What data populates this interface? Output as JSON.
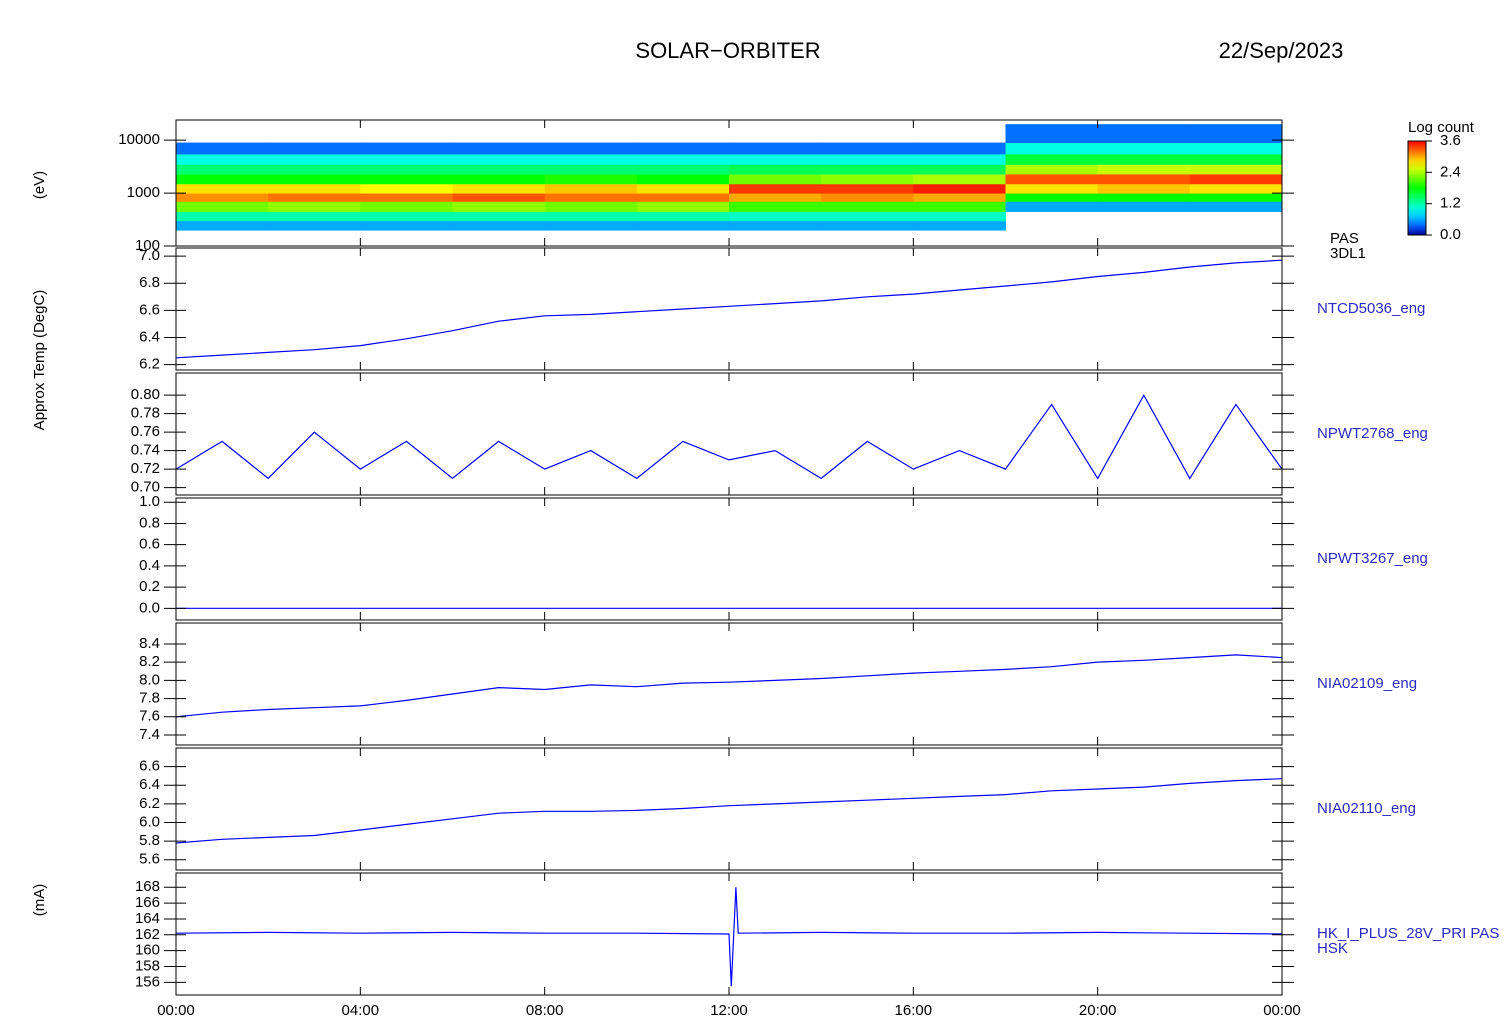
{
  "header": {
    "title": "SOLAR−ORBITER",
    "date": "22/Sep/2023"
  },
  "chart_data": [
    {
      "type": "heatmap",
      "ylabel": "(eV)",
      "log": true,
      "ylim": [
        100,
        24000
      ],
      "yticks": [
        100,
        1000,
        10000
      ],
      "xlim": [
        0,
        24
      ],
      "x_bins": [
        0,
        2,
        4,
        6,
        8,
        10,
        12,
        14,
        16,
        18,
        20,
        22,
        24
      ],
      "y_bins": [
        200,
        300,
        450,
        700,
        1000,
        1500,
        2300,
        3500,
        5500,
        9000,
        20000
      ],
      "z": [
        [
          0.6,
          1.2,
          2.2,
          3.1,
          2.8,
          1.8,
          1.4,
          1.0,
          0.4,
          null
        ],
        [
          0.6,
          1.2,
          2.3,
          3.2,
          2.8,
          1.8,
          1.4,
          1.0,
          0.4,
          null
        ],
        [
          0.6,
          1.2,
          2.2,
          3.2,
          2.7,
          1.8,
          1.4,
          1.0,
          0.4,
          null
        ],
        [
          0.6,
          1.2,
          2.3,
          3.3,
          2.8,
          1.8,
          1.4,
          1.0,
          0.4,
          null
        ],
        [
          0.6,
          1.2,
          2.2,
          3.2,
          2.9,
          1.9,
          1.4,
          1.0,
          0.4,
          null
        ],
        [
          0.6,
          1.2,
          2.3,
          3.2,
          2.8,
          1.8,
          1.4,
          1.0,
          0.4,
          null
        ],
        [
          0.6,
          1.1,
          2.0,
          3.0,
          3.4,
          2.2,
          1.5,
          1.0,
          0.4,
          null
        ],
        [
          0.6,
          1.1,
          2.0,
          3.1,
          3.4,
          2.3,
          1.5,
          1.0,
          0.4,
          null
        ],
        [
          0.6,
          1.1,
          2.0,
          3.0,
          3.5,
          2.4,
          1.5,
          1.0,
          0.4,
          null
        ],
        [
          null,
          null,
          0.6,
          1.8,
          2.8,
          3.3,
          2.4,
          1.6,
          1.0,
          0.4
        ],
        [
          null,
          null,
          0.6,
          1.8,
          2.9,
          3.3,
          2.5,
          1.6,
          1.0,
          0.4
        ],
        [
          null,
          null,
          0.6,
          1.8,
          2.8,
          3.4,
          2.5,
          1.6,
          1.0,
          0.4
        ]
      ],
      "clim": [
        0,
        3.6
      ],
      "colorbar_title": "Log count",
      "colorbar_ticks": [
        {
          "value": 0,
          "label": "0.0"
        },
        {
          "value": 1.2,
          "label": "1.2"
        },
        {
          "value": 2.4,
          "label": "2.4"
        },
        {
          "value": 3.6,
          "label": "3.6"
        }
      ],
      "right_labels": [
        "PAS",
        "3DL1"
      ]
    },
    {
      "type": "line",
      "ylabel": "Approx Temp (DegC)",
      "color": "#0000ff",
      "ylim": [
        6.16,
        7.06
      ],
      "yticks": [
        {
          "value": 6.2,
          "label": "6.2"
        },
        {
          "value": 6.4,
          "label": "6.4"
        },
        {
          "value": 6.6,
          "label": "6.6"
        },
        {
          "value": 6.8,
          "label": "6.8"
        },
        {
          "value": 7,
          "label": "7.0"
        }
      ],
      "x": [
        0,
        1,
        2,
        3,
        4,
        5,
        6,
        7,
        8,
        9,
        10,
        11,
        12,
        13,
        14,
        15,
        16,
        17,
        18,
        19,
        20,
        21,
        22,
        23,
        24
      ],
      "values": [
        6.25,
        6.27,
        6.29,
        6.31,
        6.34,
        6.39,
        6.45,
        6.52,
        6.56,
        6.57,
        6.59,
        6.61,
        6.63,
        6.65,
        6.67,
        6.7,
        6.72,
        6.75,
        6.78,
        6.81,
        6.85,
        6.88,
        6.92,
        6.95,
        6.97
      ],
      "right_labels": [
        "NTCD5036_eng"
      ]
    },
    {
      "type": "line",
      "color": "#0000ff",
      "ylim": [
        0.692,
        0.824
      ],
      "yticks": [
        {
          "value": 0.7,
          "label": "0.70"
        },
        {
          "value": 0.72,
          "label": "0.72"
        },
        {
          "value": 0.74,
          "label": "0.74"
        },
        {
          "value": 0.76,
          "label": "0.76"
        },
        {
          "value": 0.78,
          "label": "0.78"
        },
        {
          "value": 0.8,
          "label": "0.80"
        }
      ],
      "x": [
        0,
        1,
        2,
        3,
        4,
        5,
        6,
        7,
        8,
        9,
        10,
        11,
        12,
        13,
        14,
        15,
        16,
        17,
        18,
        19,
        20,
        21,
        22,
        23,
        24
      ],
      "values": [
        0.72,
        0.75,
        0.71,
        0.76,
        0.72,
        0.75,
        0.71,
        0.75,
        0.72,
        0.74,
        0.71,
        0.75,
        0.73,
        0.74,
        0.71,
        0.75,
        0.72,
        0.74,
        0.72,
        0.79,
        0.71,
        0.8,
        0.71,
        0.79,
        0.72
      ],
      "right_labels": [
        "NPWT2768_eng"
      ]
    },
    {
      "type": "line",
      "color": "#0000ff",
      "ylim": [
        -0.11,
        1.04
      ],
      "yticks": [
        {
          "value": 0,
          "label": "0.0"
        },
        {
          "value": 0.2,
          "label": "0.2"
        },
        {
          "value": 0.4,
          "label": "0.4"
        },
        {
          "value": 0.6,
          "label": "0.6"
        },
        {
          "value": 0.8,
          "label": "0.8"
        },
        {
          "value": 1,
          "label": "1.0"
        }
      ],
      "x": [
        0,
        1,
        2,
        3,
        4,
        5,
        6,
        7,
        8,
        9,
        10,
        11,
        12,
        13,
        14,
        15,
        16,
        17,
        18,
        19,
        20,
        21,
        22,
        23,
        24
      ],
      "values": [
        0,
        0,
        0,
        0,
        0,
        0,
        0,
        0,
        0,
        0,
        0,
        0,
        0,
        0,
        0,
        0,
        0,
        0,
        0,
        0,
        0,
        0,
        0,
        0,
        0
      ],
      "right_labels": [
        "NPWT3267_eng"
      ]
    },
    {
      "type": "line",
      "color": "#0000ff",
      "ylim": [
        7.29,
        8.63
      ],
      "yticks": [
        {
          "value": 7.4,
          "label": "7.4"
        },
        {
          "value": 7.6,
          "label": "7.6"
        },
        {
          "value": 7.8,
          "label": "7.8"
        },
        {
          "value": 8,
          "label": "8.0"
        },
        {
          "value": 8.2,
          "label": "8.2"
        },
        {
          "value": 8.4,
          "label": "8.4"
        }
      ],
      "x": [
        0,
        1,
        2,
        3,
        4,
        5,
        6,
        7,
        8,
        9,
        10,
        11,
        12,
        13,
        14,
        15,
        16,
        17,
        18,
        19,
        20,
        21,
        22,
        23,
        24
      ],
      "values": [
        7.6,
        7.65,
        7.68,
        7.7,
        7.72,
        7.78,
        7.85,
        7.92,
        7.9,
        7.95,
        7.93,
        7.97,
        7.98,
        8.0,
        8.02,
        8.05,
        8.08,
        8.1,
        8.12,
        8.15,
        8.2,
        8.22,
        8.25,
        8.28,
        8.25
      ],
      "right_labels": [
        "NIA02109_eng"
      ]
    },
    {
      "type": "line",
      "color": "#0000ff",
      "ylim": [
        5.49,
        6.8
      ],
      "yticks": [
        {
          "value": 5.6,
          "label": "5.6"
        },
        {
          "value": 5.8,
          "label": "5.8"
        },
        {
          "value": 6,
          "label": "6.0"
        },
        {
          "value": 6.2,
          "label": "6.2"
        },
        {
          "value": 6.4,
          "label": "6.4"
        },
        {
          "value": 6.6,
          "label": "6.6"
        }
      ],
      "x": [
        0,
        1,
        2,
        3,
        4,
        5,
        6,
        7,
        8,
        9,
        10,
        11,
        12,
        13,
        14,
        15,
        16,
        17,
        18,
        19,
        20,
        21,
        22,
        23,
        24
      ],
      "values": [
        5.78,
        5.82,
        5.84,
        5.86,
        5.92,
        5.98,
        6.04,
        6.1,
        6.12,
        6.12,
        6.13,
        6.15,
        6.18,
        6.2,
        6.22,
        6.24,
        6.26,
        6.28,
        6.3,
        6.34,
        6.36,
        6.38,
        6.42,
        6.45,
        6.47
      ],
      "right_labels": [
        "NIA02110_eng"
      ]
    },
    {
      "type": "line",
      "ylabel": "(mA)",
      "color": "#0000ff",
      "ylim": [
        154.4,
        169.8
      ],
      "yticks": [
        156,
        158,
        160,
        162,
        164,
        166,
        168
      ],
      "x": [
        0,
        2,
        4,
        6,
        8,
        10,
        12,
        12.05,
        12.15,
        12.2,
        14,
        16,
        18,
        20,
        22,
        24
      ],
      "values": [
        162.2,
        162.3,
        162.2,
        162.3,
        162.2,
        162.2,
        162.1,
        155.5,
        168,
        162.2,
        162.3,
        162.2,
        162.2,
        162.3,
        162.2,
        162.1
      ],
      "right_labels": [
        "HK_I_PLUS_28V_PRI PAS",
        "HSK"
      ],
      "xlim": [
        0,
        24
      ],
      "xticks": [
        {
          "value": 0,
          "label": "00:00"
        },
        {
          "value": 4,
          "label": "04:00"
        },
        {
          "value": 8,
          "label": "08:00"
        },
        {
          "value": 12,
          "label": "12:00"
        },
        {
          "value": 16,
          "label": "16:00"
        },
        {
          "value": 20,
          "label": "20:00"
        },
        {
          "value": 24,
          "label": "00:00"
        }
      ]
    }
  ]
}
